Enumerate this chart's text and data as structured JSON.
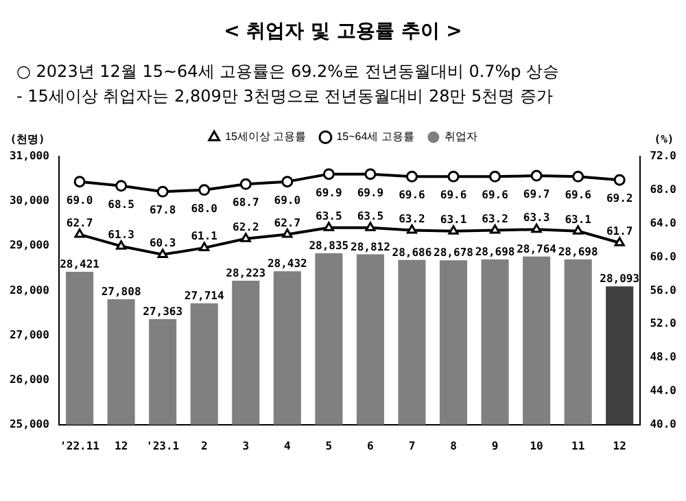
{
  "chart_data": {
    "type": "bar",
    "title": "< 취업자 및 고용률 추이 >",
    "subtitle": "○ 2023년 12월 15~64세 고용률은 69.2%로 전년동월대비 0.7%p 상승",
    "annotations": [
      "- 15세이상 취업자는 2,809만 3천명으로 전년동월대비 28만 5천명 증가"
    ],
    "ylabel": "(천명)",
    "y2label": "(%)",
    "categories": [
      "'22.11",
      "12",
      "'23.1",
      "2",
      "3",
      "4",
      "5",
      "6",
      "7",
      "8",
      "9",
      "10",
      "11",
      "12"
    ],
    "series": [
      {
        "name": "취업자",
        "colors": [
          "#808080",
          "#808080",
          "#808080",
          "#808080",
          "#808080",
          "#808080",
          "#808080",
          "#808080",
          "#808080",
          "#808080",
          "#808080",
          "#808080",
          "#808080",
          "#404040"
        ],
        "values": [
          28421,
          27808,
          27363,
          27714,
          28223,
          28432,
          28835,
          28812,
          28686,
          28678,
          28698,
          28764,
          28698,
          28093
        ],
        "value_labels": [
          "28,421",
          "27,808",
          "27,363",
          "27,714",
          "28,223",
          "28,432",
          "28,835",
          "28,812",
          "28,686",
          "28,678",
          "28,698",
          "28,764",
          "28,698",
          "28,093"
        ]
      },
      {
        "name": "15세이상 고용률",
        "type": "line",
        "axis": "y2",
        "color": "#000000",
        "marker": "triangle",
        "values": [
          62.7,
          61.3,
          60.3,
          61.1,
          62.2,
          62.7,
          63.5,
          63.5,
          63.2,
          63.1,
          63.2,
          63.3,
          63.1,
          61.7
        ],
        "value_labels": [
          "62.7",
          "61.3",
          "60.3",
          "61.1",
          "62.2",
          "62.7",
          "63.5",
          "63.5",
          "63.2",
          "63.1",
          "63.2",
          "63.3",
          "63.1",
          "61.7"
        ]
      },
      {
        "name": "15~64세 고용률",
        "type": "line",
        "axis": "y2",
        "color": "#000000",
        "marker": "circle",
        "values": [
          69.0,
          68.5,
          67.8,
          68.0,
          68.7,
          69.0,
          69.9,
          69.9,
          69.6,
          69.6,
          69.6,
          69.7,
          69.6,
          69.2
        ],
        "value_labels": [
          "69.0",
          "68.5",
          "67.8",
          "68.0",
          "68.7",
          "69.0",
          "69.9",
          "69.9",
          "69.6",
          "69.6",
          "69.6",
          "69.7",
          "69.6",
          "69.2"
        ]
      }
    ],
    "ylim": [
      25000,
      31000
    ],
    "yticks": [
      {
        "value": 25000,
        "label": "25,000"
      },
      {
        "value": 26000,
        "label": "26,000"
      },
      {
        "value": 27000,
        "label": "27,000"
      },
      {
        "value": 28000,
        "label": "28,000"
      },
      {
        "value": 29000,
        "label": "29,000"
      },
      {
        "value": 30000,
        "label": "30,000"
      },
      {
        "value": 31000,
        "label": "31,000"
      }
    ],
    "y2lim": [
      40,
      72
    ],
    "y2ticks": [
      {
        "value": 40,
        "label": "40.0"
      },
      {
        "value": 44,
        "label": "44.0"
      },
      {
        "value": 48,
        "label": "48.0"
      },
      {
        "value": 52,
        "label": "52.0"
      },
      {
        "value": 56,
        "label": "56.0"
      },
      {
        "value": 60,
        "label": "60.0"
      },
      {
        "value": 64,
        "label": "64.0"
      },
      {
        "value": 68,
        "label": "68.0"
      },
      {
        "value": 72,
        "label": "72.0"
      }
    ],
    "grid": false,
    "legend": "top",
    "line_style": "solid"
  }
}
